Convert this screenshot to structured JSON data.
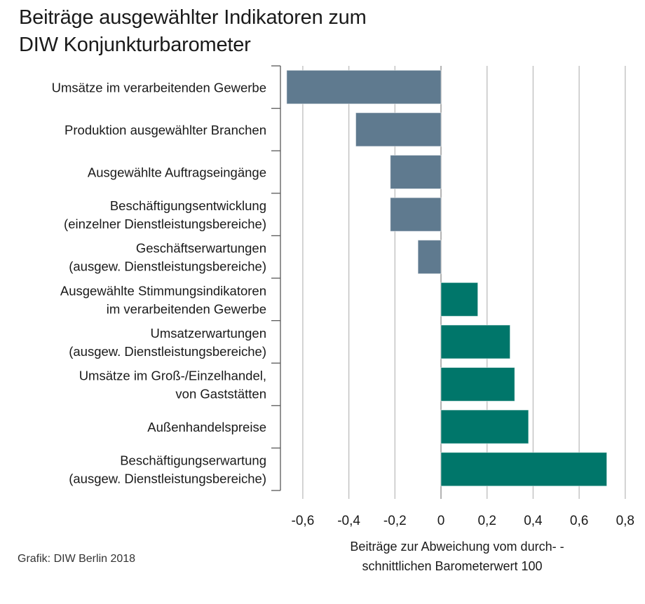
{
  "title_lines": [
    "Beiträge ausgewählter Indikatoren zum",
    "DIW Konjunkturbarometer"
  ],
  "source": "Grafik: DIW Berlin 2018",
  "colors": {
    "negative": "#5f7a8f",
    "positive": "#00766a",
    "grid": "#bdbdbd",
    "axis": "#595959"
  },
  "chart_data": {
    "type": "bar",
    "orientation": "horizontal",
    "title": "Beiträge ausgewählter Indikatoren zum DIW Konjunkturbarometer",
    "xlabel": [
      "Beiträge zur Abweichung vom durch- -",
      "schnittlichen Barometerwert 100"
    ],
    "ylabel": "",
    "xlim": [
      -0.7,
      0.8
    ],
    "xticks": [
      -0.6,
      -0.4,
      -0.2,
      0,
      0.2,
      0.4,
      0.6,
      0.8
    ],
    "xtick_labels": [
      "-0,6",
      "-0,4",
      "-0,2",
      "0",
      "0,2",
      "0,4",
      "0,6",
      "0,8"
    ],
    "grid": true,
    "legend": "none",
    "categories": [
      [
        "Umsätze im verarbeitenden Gewerbe"
      ],
      [
        "Produktion ausgewählter Branchen"
      ],
      [
        "Ausgewählte Auftragseingänge"
      ],
      [
        "Beschäftigungsentwicklung",
        "(einzelner Dienstleistungsbereiche)"
      ],
      [
        "Geschäftserwartungen",
        "(ausgew. Dienstleistungsbereiche)"
      ],
      [
        "Ausgewählte Stimmungsindikatoren",
        "im verarbeitenden Gewerbe"
      ],
      [
        "Umsatzerwartungen",
        "(ausgew. Dienstleistungsbereiche)"
      ],
      [
        "Umsätze im Groß-/Einzelhandel,",
        "von Gaststätten"
      ],
      [
        "Außenhandelspreise"
      ],
      [
        "Beschäftigungserwartung",
        "(ausgew. Dienstleistungsbereiche)"
      ]
    ],
    "values": [
      -0.67,
      -0.37,
      -0.22,
      -0.22,
      -0.1,
      0.16,
      0.3,
      0.32,
      0.38,
      0.72
    ]
  }
}
